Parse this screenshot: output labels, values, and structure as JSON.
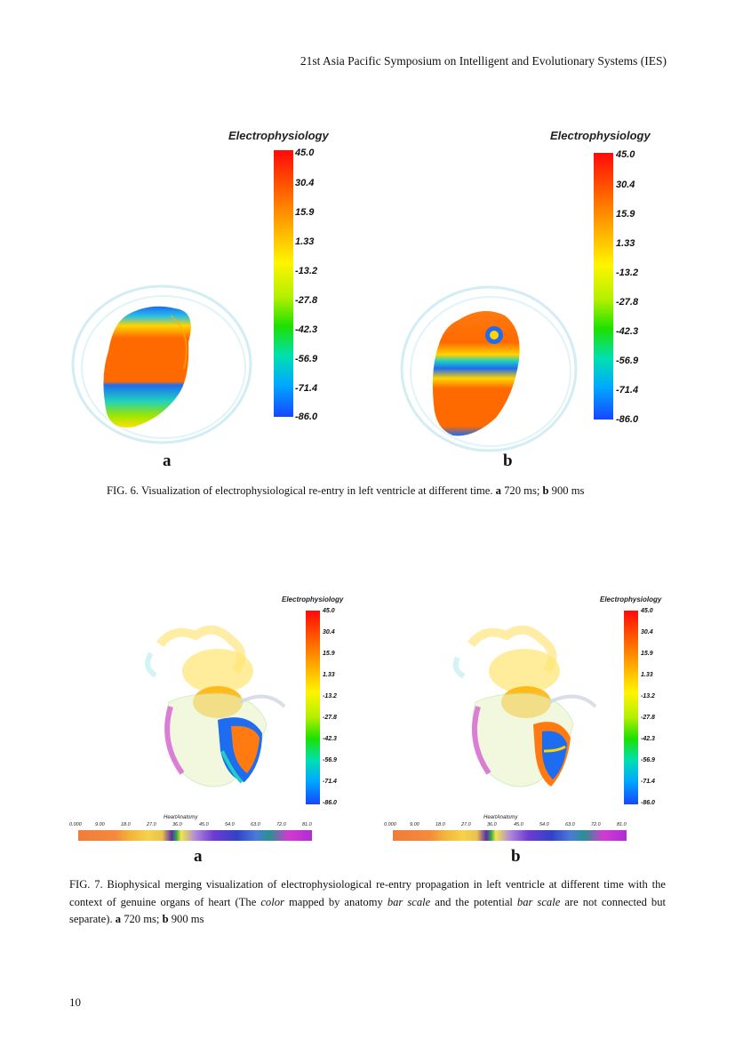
{
  "header": {
    "text": "21st Asia Pacific Symposium on Intelligent and Evolutionary Systems (IES)"
  },
  "figure6": {
    "panels": [
      {
        "letter": "a",
        "colorbar": {
          "title": "Electrophysiology",
          "ticks": [
            "45.0",
            "30.4",
            "15.9",
            "1.33",
            "-13.2",
            "-27.8",
            "-42.3",
            "-56.9",
            "-71.4",
            "-86.0"
          ]
        }
      },
      {
        "letter": "b",
        "colorbar": {
          "title": "Electrophysiology",
          "ticks": [
            "45.0",
            "30.4",
            "15.9",
            "1.33",
            "-13.2",
            "-27.8",
            "-42.3",
            "-56.9",
            "-71.4",
            "-86.0"
          ]
        }
      }
    ],
    "caption": {
      "text": "FIG. 6. Visualization of electrophysiological re-entry in left ventricle at different time. ",
      "a_bold": "a",
      "a_text": " 720 ms; ",
      "b_bold": "b",
      "b_text": " 900 ms"
    }
  },
  "figure7": {
    "panels": [
      {
        "letter": "a",
        "colorbar": {
          "title": "Electrophysiology",
          "ticks": [
            "45.0",
            "30.4",
            "15.9",
            "1.33",
            "-13.2",
            "-27.8",
            "-42.3",
            "-56.9",
            "-71.4",
            "-86.0"
          ]
        },
        "anatomy": {
          "title": "HeartAnatomy",
          "ticks": [
            "0.000",
            "9.00",
            "18.0",
            "27.0",
            "36.0",
            "45.0",
            "54.0",
            "63.0",
            "72.0",
            "81.0"
          ]
        }
      },
      {
        "letter": "b",
        "colorbar": {
          "title": "Electrophysiology",
          "ticks": [
            "45.0",
            "30.4",
            "15.9",
            "1.33",
            "-13.2",
            "-27.8",
            "-42.3",
            "-56.9",
            "-71.4",
            "-86.0"
          ]
        },
        "anatomy": {
          "title": "HeartAnatomy",
          "ticks": [
            "0.000",
            "9.00",
            "18.0",
            "27.0",
            "36.0",
            "45.0",
            "54.0",
            "63.0",
            "72.0",
            "81.0"
          ]
        }
      }
    ],
    "caption": {
      "p1": "FIG. 7.  Biophysical merging visualization of electrophysiological re-entry propagation in left ventricle at different time with the context of genuine organs of heart (The ",
      "i1": "color",
      "p2": " mapped by anatomy ",
      "i2": "bar scale",
      "p3": " and the potential ",
      "i3": "bar scale",
      "p4": " are not connected but separate). ",
      "a_bold": "a",
      "a_text": " 720 ms; ",
      "b_bold": "b",
      "b_text": " 900 ms"
    }
  },
  "page_number": "10"
}
